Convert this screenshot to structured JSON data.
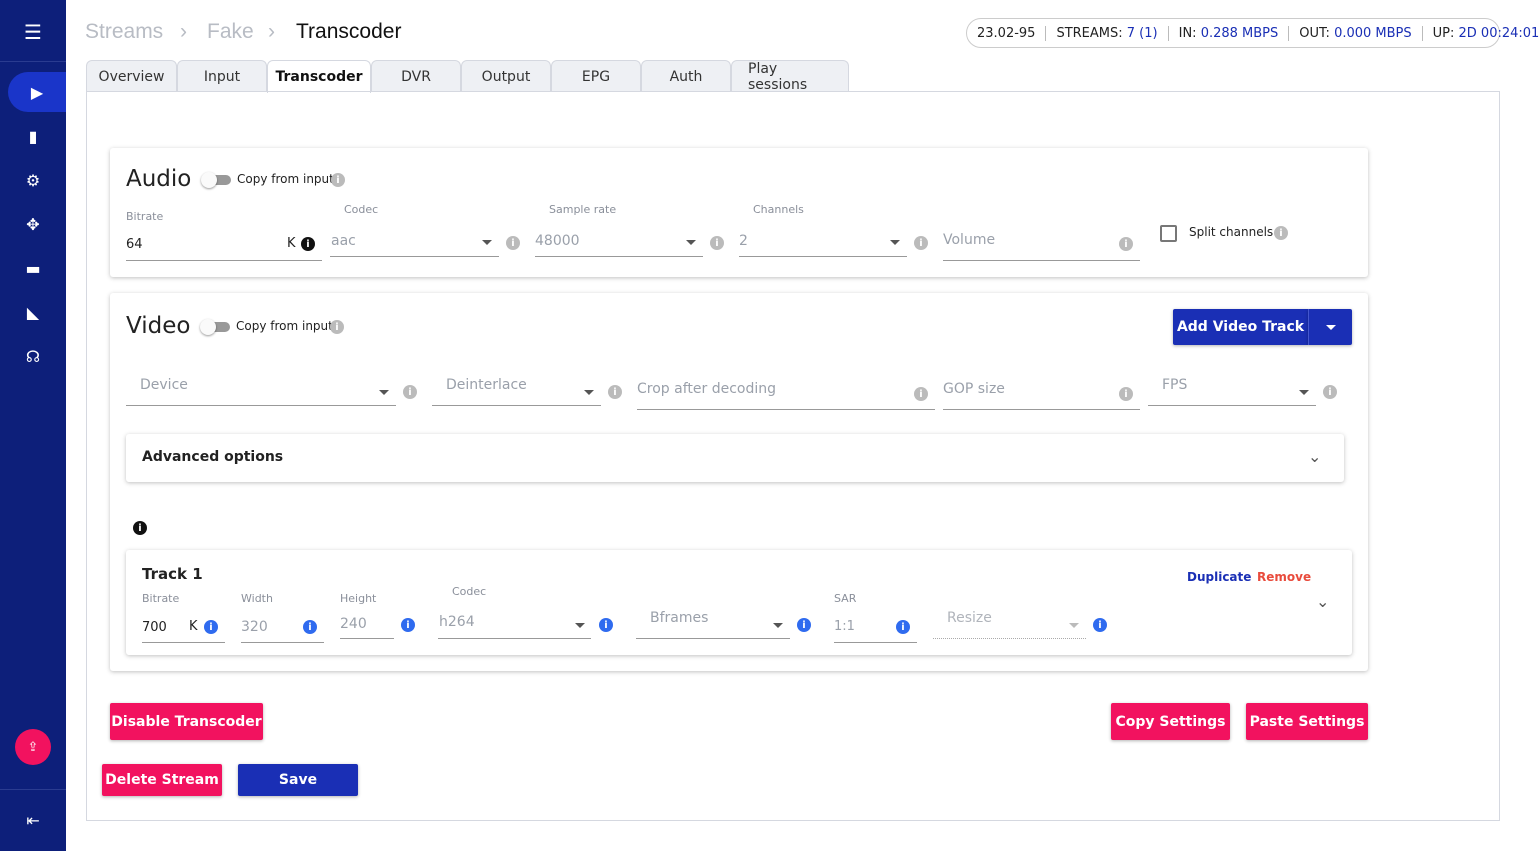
{
  "breadcrumb": [
    "Streams",
    "Fake",
    "Transcoder"
  ],
  "status": {
    "version": "23.02-95",
    "streams_label": "STREAMS:",
    "streams": "7 (1)",
    "in_label": "IN:",
    "in": "0.288 MBPS",
    "out_label": "OUT:",
    "out": "0.000 MBPS",
    "up_label": "UP:",
    "up": "2D 00:24:01"
  },
  "tabs": [
    "Overview",
    "Input",
    "Transcoder",
    "DVR",
    "Output",
    "EPG",
    "Auth",
    "Play sessions"
  ],
  "audio": {
    "title": "Audio",
    "copy_label": "Copy from input",
    "bitrate_label": "Bitrate",
    "bitrate": "64",
    "bitrate_unit": "K",
    "codec_label": "Codec",
    "codec": "aac",
    "sample_rate_label": "Sample rate",
    "sample_rate": "48000",
    "channels_label": "Channels",
    "channels": "2",
    "volume_placeholder": "Volume",
    "split_label": "Split channels"
  },
  "video": {
    "title": "Video",
    "copy_label": "Copy from input",
    "add_track": "Add Video Track",
    "device": "Device",
    "deinterlace": "Deinterlace",
    "crop": "Crop after decoding",
    "gop": "GOP size",
    "fps": "FPS",
    "advanced": "Advanced options"
  },
  "track": {
    "title": "Track 1",
    "duplicate": "Duplicate",
    "remove": "Remove",
    "bitrate_label": "Bitrate",
    "bitrate": "700",
    "bitrate_unit": "K",
    "width_label": "Width",
    "width": "320",
    "height_label": "Height",
    "height": "240",
    "codec_label": "Codec",
    "codec": "h264",
    "bframes": "Bframes",
    "sar_label": "SAR",
    "sar": "1:1",
    "resize": "Resize"
  },
  "buttons": {
    "disable": "Disable Transcoder",
    "copy": "Copy Settings",
    "paste": "Paste Settings",
    "delete": "Delete Stream",
    "save": "Save"
  }
}
